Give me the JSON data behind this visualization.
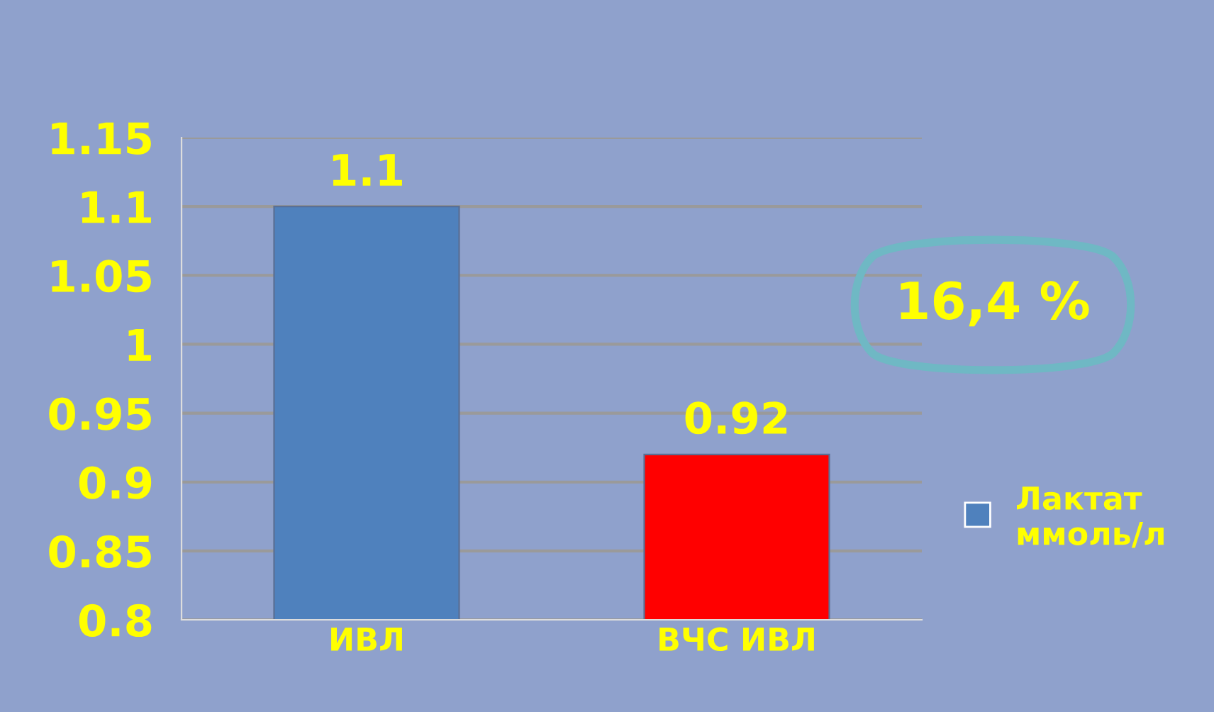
{
  "chart_data": {
    "type": "bar",
    "categories": [
      "ИВЛ",
      "ВЧС ИВЛ"
    ],
    "series": [
      {
        "name": "Лактат ммоль/л",
        "color": "#4f81bd",
        "colors": [
          "#4f81bd",
          "#ff0000"
        ],
        "values": [
          1.1,
          0.92
        ]
      }
    ],
    "ylim": [
      0.8,
      1.15
    ],
    "yticks": [
      {
        "value": 0.8,
        "label": "0.8"
      },
      0.85,
      {
        "value": 0.9,
        "label": "0.9"
      },
      0.95,
      {
        "value": 1.0,
        "label": "1"
      },
      1.05,
      {
        "value": 1.1,
        "label": "1.1"
      },
      1.15
    ],
    "annotations": [
      "16,4 %"
    ],
    "data_labels": true,
    "grid": "y",
    "legend": "right"
  }
}
